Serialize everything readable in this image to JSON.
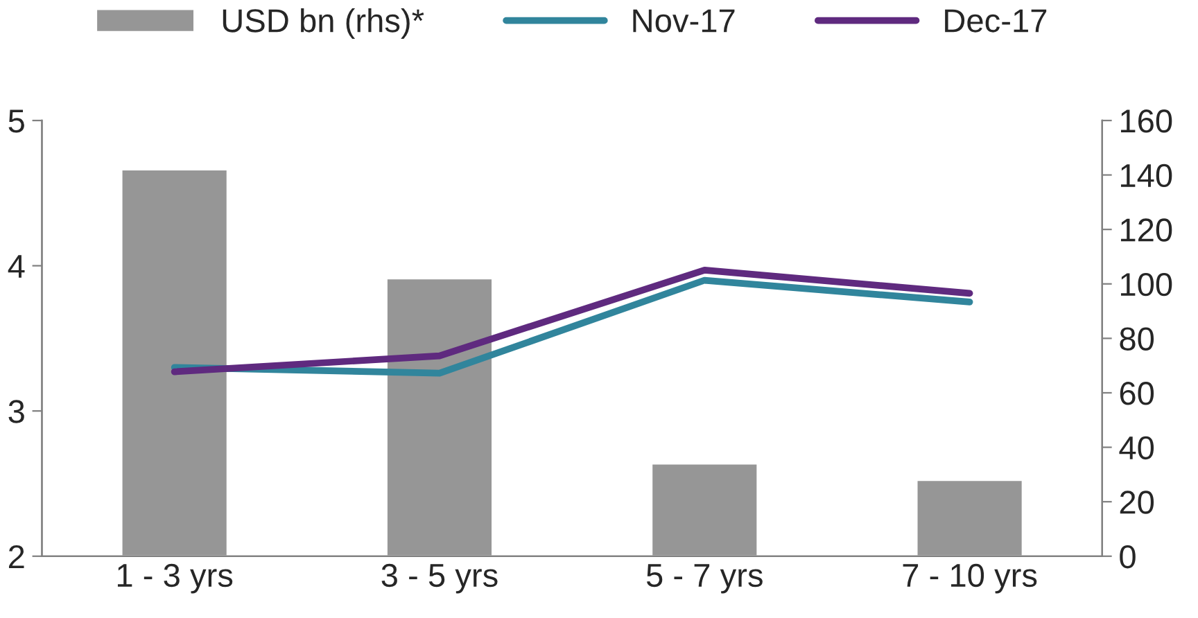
{
  "chart_data": {
    "type": "line",
    "categories": [
      "1 - 3 yrs",
      "3 - 5 yrs",
      "5 - 7 yrs",
      "7 - 10 yrs"
    ],
    "series": [
      {
        "name": "USD bn (rhs)*",
        "type": "bar",
        "axis": "y2",
        "color": "#969696",
        "values": [
          142,
          102,
          34,
          28
        ]
      },
      {
        "name": "Nov-17",
        "color": "#31859c",
        "values": [
          3.3,
          3.26,
          3.9,
          3.75
        ]
      },
      {
        "name": "Dec-17",
        "color": "#5f2a7f",
        "values": [
          3.27,
          3.38,
          3.97,
          3.81
        ]
      }
    ],
    "ylim": [
      2,
      5
    ],
    "yticks": [
      2,
      3,
      4,
      5
    ],
    "y2lim": [
      0,
      160
    ],
    "y2ticks": [
      0,
      20,
      40,
      60,
      80,
      100,
      120,
      140,
      160
    ],
    "legend": "top",
    "grid": false,
    "marker": "none",
    "line_style": "solid"
  }
}
